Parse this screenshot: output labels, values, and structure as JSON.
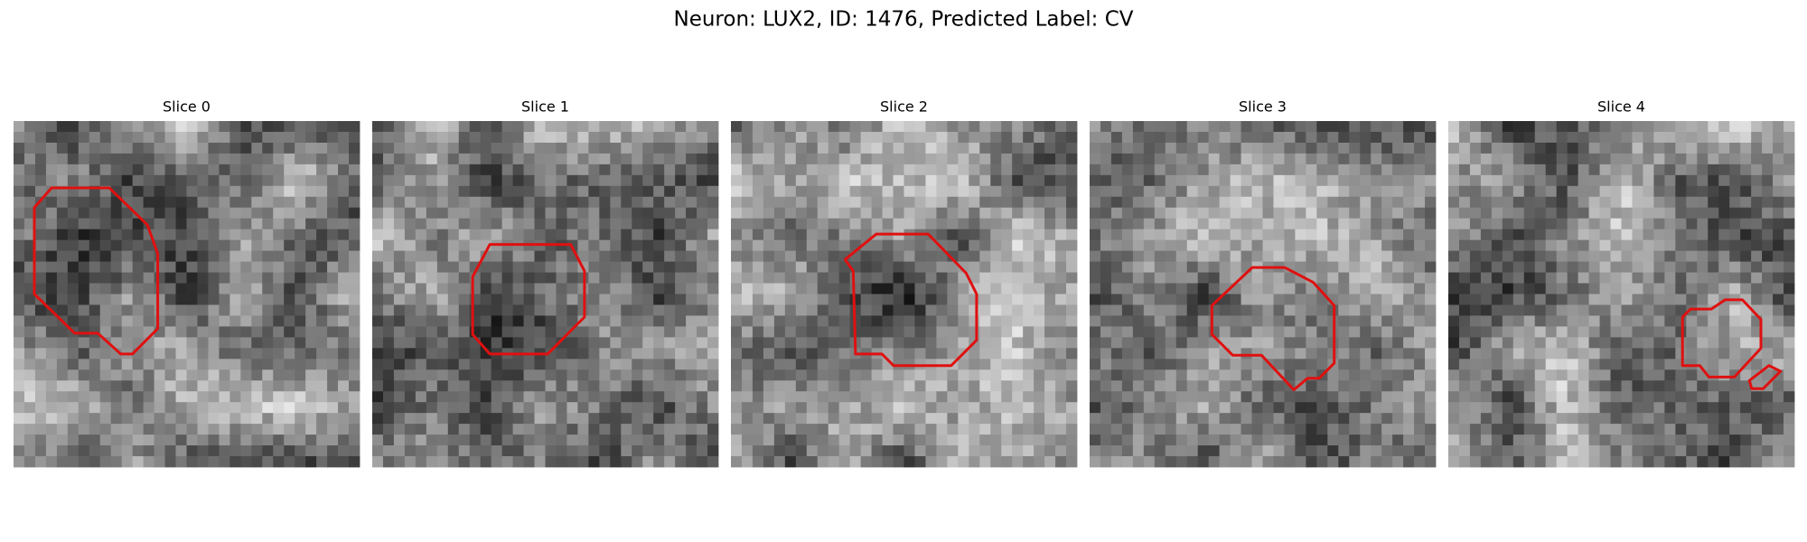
{
  "figure": {
    "title": "Neuron: LUX2, ID: 1476, Predicted Label: CV",
    "panels": [
      {
        "title": "Slice 0"
      },
      {
        "title": "Slice 1"
      },
      {
        "title": "Slice 2"
      },
      {
        "title": "Slice 3"
      },
      {
        "title": "Slice 4"
      }
    ]
  }
}
